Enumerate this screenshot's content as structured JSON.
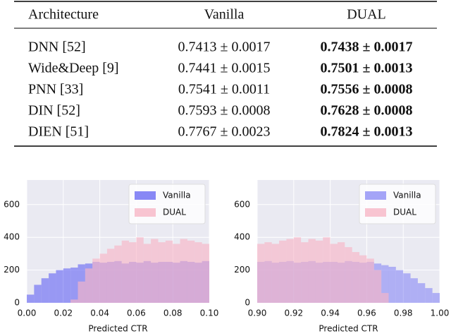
{
  "table": {
    "header": [
      "Architecture",
      "Vanilla",
      "DUAL"
    ],
    "rows": [
      [
        "DNN [52]",
        "0.7413 ± 0.0017",
        "0.7438 ± 0.0017"
      ],
      [
        "Wide&Deep [9]",
        "0.7441 ± 0.0015",
        "0.7501 ± 0.0013"
      ],
      [
        "PNN [33]",
        "0.7541 ± 0.0011",
        "0.7556 ± 0.0008"
      ],
      [
        "DIN [52]",
        "0.7593 ± 0.0008",
        "0.7628 ± 0.0008"
      ],
      [
        "DIEN [51]",
        "0.7767 ± 0.0023",
        "0.7824 ± 0.0013"
      ]
    ]
  },
  "chart_data": [
    {
      "type": "histogram",
      "x_label": "Predicted CTR",
      "bins": [
        0.0,
        0.004,
        0.008,
        0.012,
        0.016,
        0.02,
        0.024,
        0.028,
        0.032,
        0.036,
        0.04,
        0.044,
        0.048,
        0.052,
        0.056,
        0.06,
        0.064,
        0.068,
        0.072,
        0.076,
        0.08,
        0.084,
        0.088,
        0.092,
        0.096,
        0.1
      ],
      "series": [
        {
          "name": "Vanilla",
          "color": "#6b6bf2",
          "values": [
            50,
            110,
            150,
            180,
            200,
            210,
            215,
            235,
            240,
            250,
            245,
            250,
            255,
            240,
            250,
            245,
            255,
            245,
            250,
            250,
            245,
            255,
            250,
            245,
            255
          ]
        },
        {
          "name": "DUAL",
          "color": "#f7b6c6",
          "values": [
            0,
            0,
            0,
            0,
            0,
            0,
            20,
            130,
            210,
            270,
            300,
            330,
            350,
            380,
            370,
            400,
            360,
            390,
            370,
            380,
            360,
            390,
            380,
            370,
            360
          ]
        }
      ],
      "xlim": [
        0.0,
        0.1
      ],
      "xticks": [
        {
          "value": 0.0,
          "label": "0.00"
        },
        {
          "value": 0.02,
          "label": "0.02"
        },
        {
          "value": 0.04,
          "label": "0.04"
        },
        {
          "value": 0.06,
          "label": "0.06"
        },
        {
          "value": 0.08,
          "label": "0.08"
        },
        {
          "value": 0.1,
          "label": "0.10"
        }
      ],
      "ylim": [
        0,
        750
      ],
      "yticks": [
        0,
        200,
        400,
        600
      ],
      "grid": true,
      "legend": "upper right"
    },
    {
      "type": "histogram",
      "x_label": "Predicted CTR",
      "bins": [
        0.9,
        0.904,
        0.908,
        0.912,
        0.916,
        0.92,
        0.924,
        0.928,
        0.932,
        0.936,
        0.94,
        0.944,
        0.948,
        0.952,
        0.956,
        0.96,
        0.964,
        0.968,
        0.972,
        0.976,
        0.98,
        0.984,
        0.988,
        0.992,
        0.996,
        1.0
      ],
      "series": [
        {
          "name": "Vanilla",
          "color": "#8f8ff5",
          "values": [
            250,
            255,
            245,
            250,
            255,
            245,
            250,
            255,
            245,
            250,
            250,
            245,
            255,
            250,
            245,
            250,
            240,
            230,
            220,
            200,
            180,
            150,
            120,
            90,
            60
          ]
        },
        {
          "name": "DUAL",
          "color": "#f7b6c6",
          "values": [
            360,
            370,
            360,
            380,
            390,
            400,
            370,
            390,
            380,
            400,
            360,
            370,
            340,
            310,
            290,
            270,
            200,
            60,
            0,
            0,
            0,
            0,
            0,
            0,
            0
          ]
        }
      ],
      "xlim": [
        0.9,
        1.0
      ],
      "xticks": [
        {
          "value": 0.9,
          "label": "0.90"
        },
        {
          "value": 0.92,
          "label": "0.92"
        },
        {
          "value": 0.94,
          "label": "0.94"
        },
        {
          "value": 0.96,
          "label": "0.96"
        },
        {
          "value": 0.98,
          "label": "0.98"
        },
        {
          "value": 1.0,
          "label": "1.00"
        }
      ],
      "ylim": [
        0,
        750
      ],
      "yticks": [
        0,
        200,
        400,
        600
      ],
      "grid": true,
      "legend": "upper right"
    }
  ]
}
